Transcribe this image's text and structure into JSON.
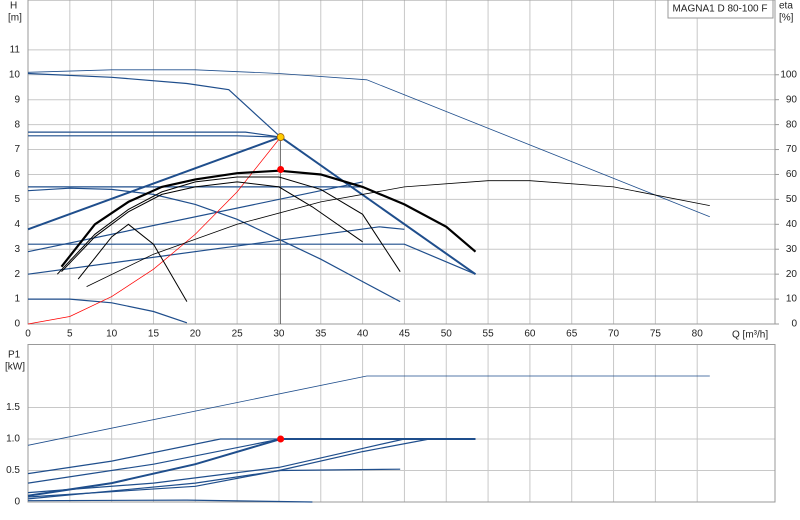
{
  "chart_data": [
    {
      "type": "line",
      "annotation": "MAGNA1 D 80-100 F",
      "y_label": "H",
      "y_unit": "[m]",
      "y2_label": "eta",
      "y2_unit": "[%]",
      "x_label": "Q [m³/h]",
      "xlim": [
        0,
        89.3
      ],
      "xticks": [
        0,
        5,
        10,
        15,
        20,
        25,
        30,
        35,
        40,
        45,
        50,
        55,
        60,
        65,
        70,
        75,
        80
      ],
      "ylim": [
        0,
        13
      ],
      "yticks": [
        0,
        1,
        2,
        3,
        4,
        5,
        6,
        7,
        8,
        9,
        10,
        11
      ],
      "y2lim": [
        0,
        130
      ],
      "y2ticks": [
        0,
        10,
        20,
        30,
        40,
        50,
        60,
        70,
        80,
        90,
        100
      ],
      "grid": true,
      "series": [
        {
          "color": "#1f4e8c",
          "width": 0.8,
          "x": [
            0,
            10,
            20,
            30,
            40.5,
            81.5
          ],
          "values": [
            10.1,
            10.2,
            10.2,
            10.05,
            9.8,
            4.3
          ]
        },
        {
          "color": "#1f4e8c",
          "width": 1.2,
          "x": [
            0,
            10,
            19,
            24,
            30.2
          ],
          "values": [
            10.05,
            9.9,
            9.65,
            9.4,
            7.5
          ]
        },
        {
          "color": "#1f4e8c",
          "width": 2,
          "x": [
            30.2,
            53.5
          ],
          "values": [
            7.5,
            2.0
          ]
        },
        {
          "color": "#1f4e8c",
          "width": 1.2,
          "x": [
            0,
            26,
            30.2
          ],
          "values": [
            7.7,
            7.7,
            7.5
          ]
        },
        {
          "color": "#1f4e8c",
          "width": 1.2,
          "x": [
            0,
            25,
            30.2
          ],
          "values": [
            7.55,
            7.55,
            7.5
          ]
        },
        {
          "color": "#1f4e8c",
          "width": 2,
          "x": [
            0,
            30.2
          ],
          "values": [
            3.8,
            7.5
          ]
        },
        {
          "color": "#1f4e8c",
          "width": 1.2,
          "x": [
            0,
            40
          ],
          "values": [
            5.5,
            5.5
          ]
        },
        {
          "color": "#1f4e8c",
          "width": 1.2,
          "x": [
            0,
            5,
            10,
            15,
            20,
            25,
            30,
            35,
            40,
            44.5
          ],
          "values": [
            5.35,
            5.45,
            5.4,
            5.2,
            4.8,
            4.2,
            3.4,
            2.6,
            1.7,
            0.9
          ]
        },
        {
          "color": "#1f4e8c",
          "width": 1.2,
          "x": [
            0,
            40
          ],
          "values": [
            2.9,
            5.7
          ]
        },
        {
          "color": "#1f4e8c",
          "width": 1.2,
          "x": [
            0,
            45,
            53.5
          ],
          "values": [
            3.2,
            3.2,
            2.0
          ]
        },
        {
          "color": "#1f4e8c",
          "width": 1.2,
          "x": [
            0,
            42,
            45
          ],
          "values": [
            2.0,
            3.9,
            3.8
          ]
        },
        {
          "color": "#1f4e8c",
          "width": 1.2,
          "x": [
            0,
            5,
            10,
            15,
            19
          ],
          "values": [
            1.0,
            1.0,
            0.85,
            0.5,
            0.05
          ]
        },
        {
          "color": "#ff0000",
          "width": 0.7,
          "x": [
            0,
            5,
            10,
            15,
            20,
            25,
            30.2
          ],
          "values": [
            0,
            0.3,
            1.1,
            2.2,
            3.6,
            5.3,
            7.5
          ]
        },
        {
          "color": "#555555",
          "width": 0.8,
          "x": [
            30.2,
            30.2
          ],
          "values": [
            0,
            7.5
          ]
        },
        {
          "color": "#000000",
          "width": 2.2,
          "axis": "y2",
          "x": [
            4,
            8,
            12,
            16,
            20,
            25,
            30,
            35,
            40,
            45,
            50,
            53.5
          ],
          "values": [
            23,
            40,
            49,
            55,
            58,
            60.5,
            61.5,
            60,
            55,
            48,
            39,
            29
          ]
        },
        {
          "color": "#000000",
          "width": 1,
          "axis": "y2",
          "x": [
            3.5,
            8,
            12,
            16,
            20,
            25,
            30,
            35,
            40,
            44.5
          ],
          "values": [
            20,
            36,
            46,
            53,
            57,
            59,
            59,
            54,
            44,
            21
          ]
        },
        {
          "color": "#000000",
          "width": 1,
          "axis": "y2",
          "x": [
            4,
            8,
            12,
            16,
            20,
            25,
            30,
            34,
            40
          ],
          "values": [
            21,
            35,
            45,
            52,
            55,
            57,
            55,
            47,
            33
          ]
        },
        {
          "color": "#000000",
          "width": 1,
          "axis": "y2",
          "x": [
            6,
            10,
            12,
            15,
            19
          ],
          "values": [
            18,
            35,
            40,
            32,
            9
          ]
        },
        {
          "color": "#000000",
          "width": 0.8,
          "axis": "y2",
          "x": [
            7,
            15,
            25,
            35,
            45,
            55,
            60,
            70,
            81.5
          ],
          "values": [
            15,
            28,
            40,
            49,
            55,
            57.5,
            57.5,
            55,
            47.5
          ]
        }
      ],
      "points": [
        {
          "x": 30.2,
          "y": 7.5,
          "color": "#ffcc00"
        },
        {
          "x": 30.2,
          "y": 62,
          "axis": "y2",
          "color": "#ff0000"
        }
      ]
    },
    {
      "type": "line",
      "y_label": "P1",
      "y_unit": "[kW]",
      "xlim": [
        0,
        89.3
      ],
      "ylim": [
        0,
        2.5
      ],
      "yticks": [
        0,
        0.5,
        {
          "value": 1,
          "label": "1.0"
        },
        1.5
      ],
      "grid": true,
      "series": [
        {
          "color": "#1f4e8c",
          "width": 0.8,
          "x": [
            0,
            40.5,
            81.5
          ],
          "values": [
            0.9,
            2.0,
            2.0
          ]
        },
        {
          "color": "#1f4e8c",
          "width": 1.2,
          "x": [
            0,
            10,
            23,
            30.2
          ],
          "values": [
            0.45,
            0.65,
            1.0,
            1.0
          ]
        },
        {
          "color": "#1f4e8c",
          "width": 2,
          "x": [
            0,
            10,
            20,
            30.2,
            53.5
          ],
          "values": [
            0.1,
            0.3,
            0.6,
            1.0,
            1.0
          ]
        },
        {
          "color": "#1f4e8c",
          "width": 1.2,
          "x": [
            0,
            15,
            30.2
          ],
          "values": [
            0.3,
            0.6,
            1.0
          ]
        },
        {
          "color": "#1f4e8c",
          "width": 1.2,
          "x": [
            0,
            15,
            30,
            40,
            45,
            53.5
          ],
          "values": [
            0.15,
            0.3,
            0.55,
            0.85,
            1.0,
            1.0
          ]
        },
        {
          "color": "#1f4e8c",
          "width": 1.2,
          "x": [
            0,
            20,
            30,
            40,
            48,
            50
          ],
          "values": [
            0.08,
            0.25,
            0.5,
            0.8,
            1.0,
            1.0
          ]
        },
        {
          "color": "#1f4e8c",
          "width": 1.2,
          "x": [
            0,
            20,
            30.2,
            44.5
          ],
          "values": [
            0.05,
            0.3,
            0.5,
            0.52
          ]
        },
        {
          "color": "#1f4e8c",
          "width": 1.2,
          "x": [
            0,
            19,
            34
          ],
          "values": [
            0.02,
            0.03,
            0.0
          ]
        }
      ],
      "points": [
        {
          "x": 30.2,
          "y": 1.0,
          "color": "#ff0000"
        }
      ]
    }
  ]
}
